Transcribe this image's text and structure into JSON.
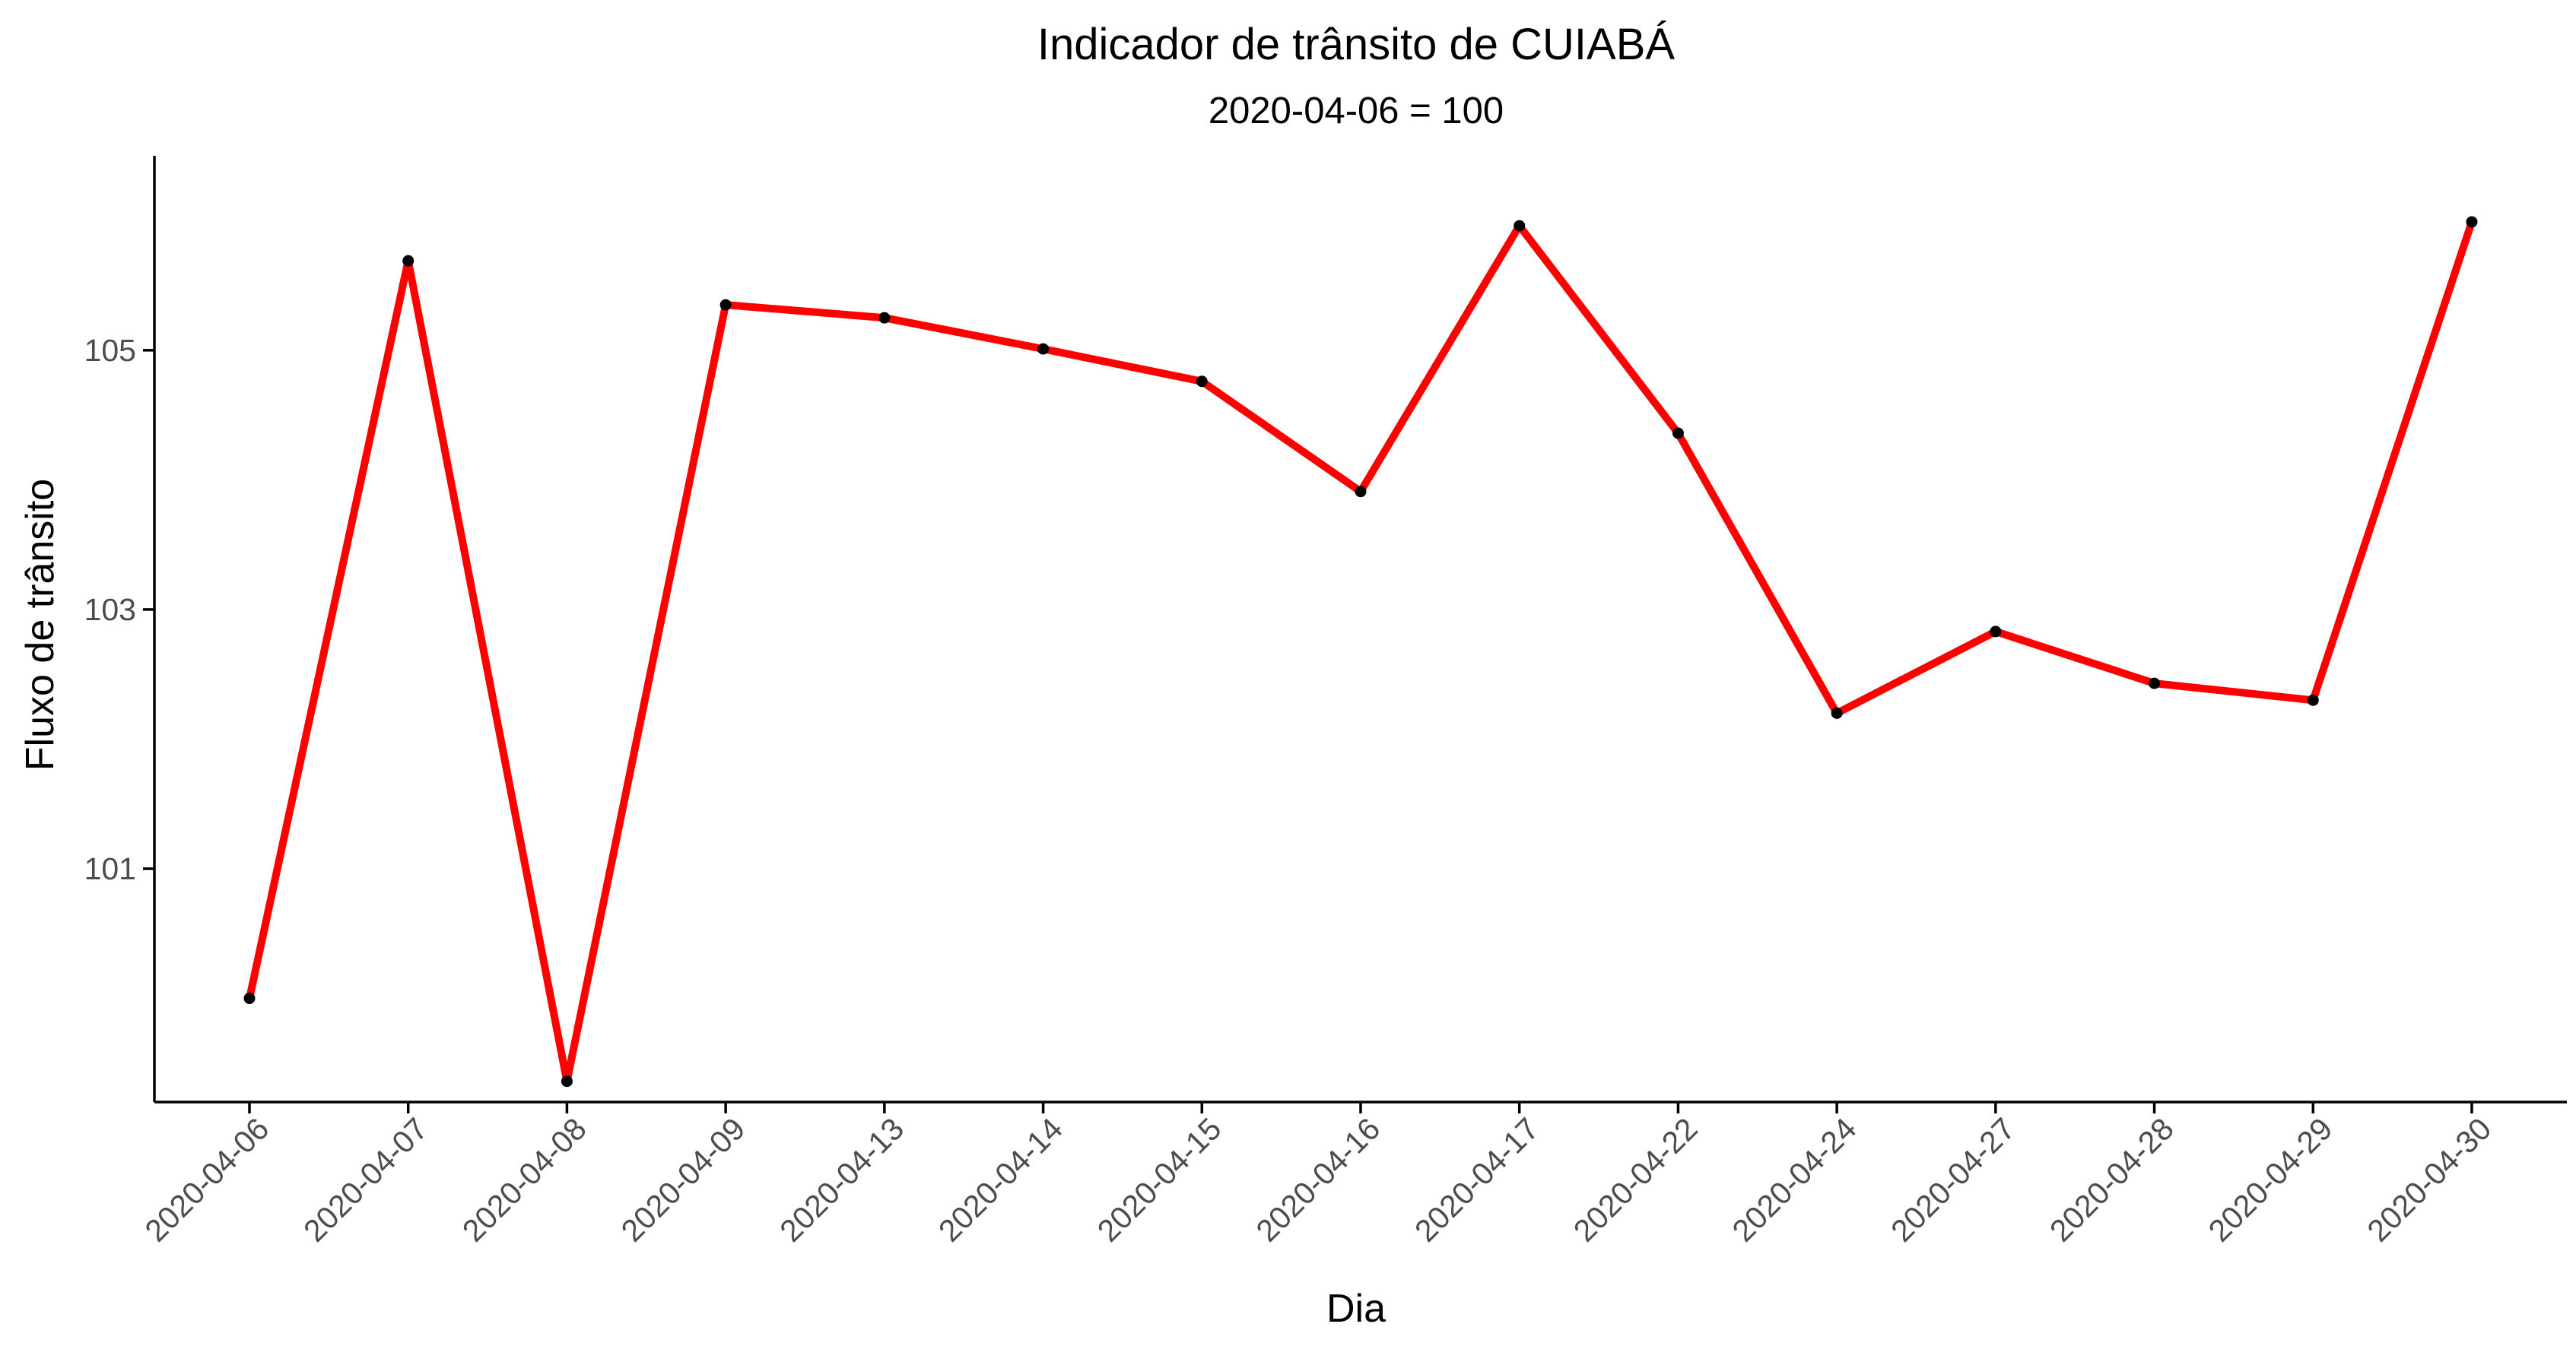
{
  "chart_data": {
    "type": "line",
    "title": "Indicador de trânsito de CUIABÁ",
    "subtitle": "2020-04-06 = 100",
    "xlabel": "Dia",
    "ylabel": "Fluxo de trânsito",
    "categories": [
      "2020-04-06",
      "2020-04-07",
      "2020-04-08",
      "2020-04-09",
      "2020-04-13",
      "2020-04-14",
      "2020-04-15",
      "2020-04-16",
      "2020-04-17",
      "2020-04-22",
      "2020-04-24",
      "2020-04-27",
      "2020-04-28",
      "2020-04-29",
      "2020-04-30"
    ],
    "series": [
      {
        "values": [
          100.0,
          105.69,
          99.36,
          105.35,
          105.25,
          105.01,
          104.76,
          103.91,
          105.96,
          104.36,
          102.2,
          102.83,
          102.43,
          102.3,
          105.99
        ]
      }
    ],
    "yticks": [
      101,
      103,
      105
    ],
    "ylim": [
      99.2,
      106.5
    ],
    "grid": false,
    "legend": "none",
    "line_color": "#ff0000",
    "point_color": "#000000"
  }
}
